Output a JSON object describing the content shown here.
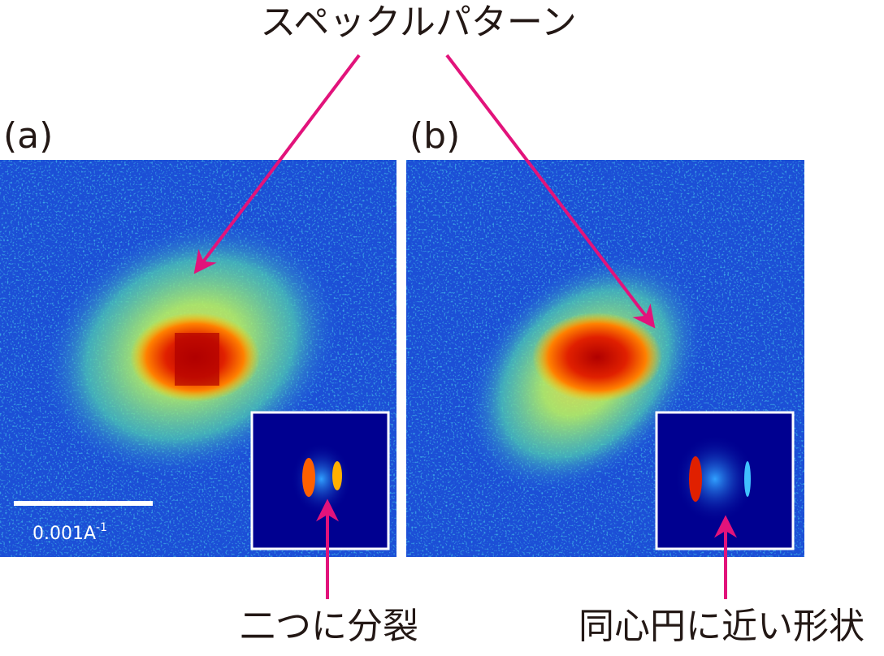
{
  "title": "スペックルパターン",
  "panels": [
    {
      "label": "(a)",
      "scale_bar": {
        "text": "0.001A",
        "superscript": "-1"
      },
      "inset_note": "二つに分裂"
    },
    {
      "label": "(b)",
      "inset_note": "同心円に近い形状"
    }
  ]
}
